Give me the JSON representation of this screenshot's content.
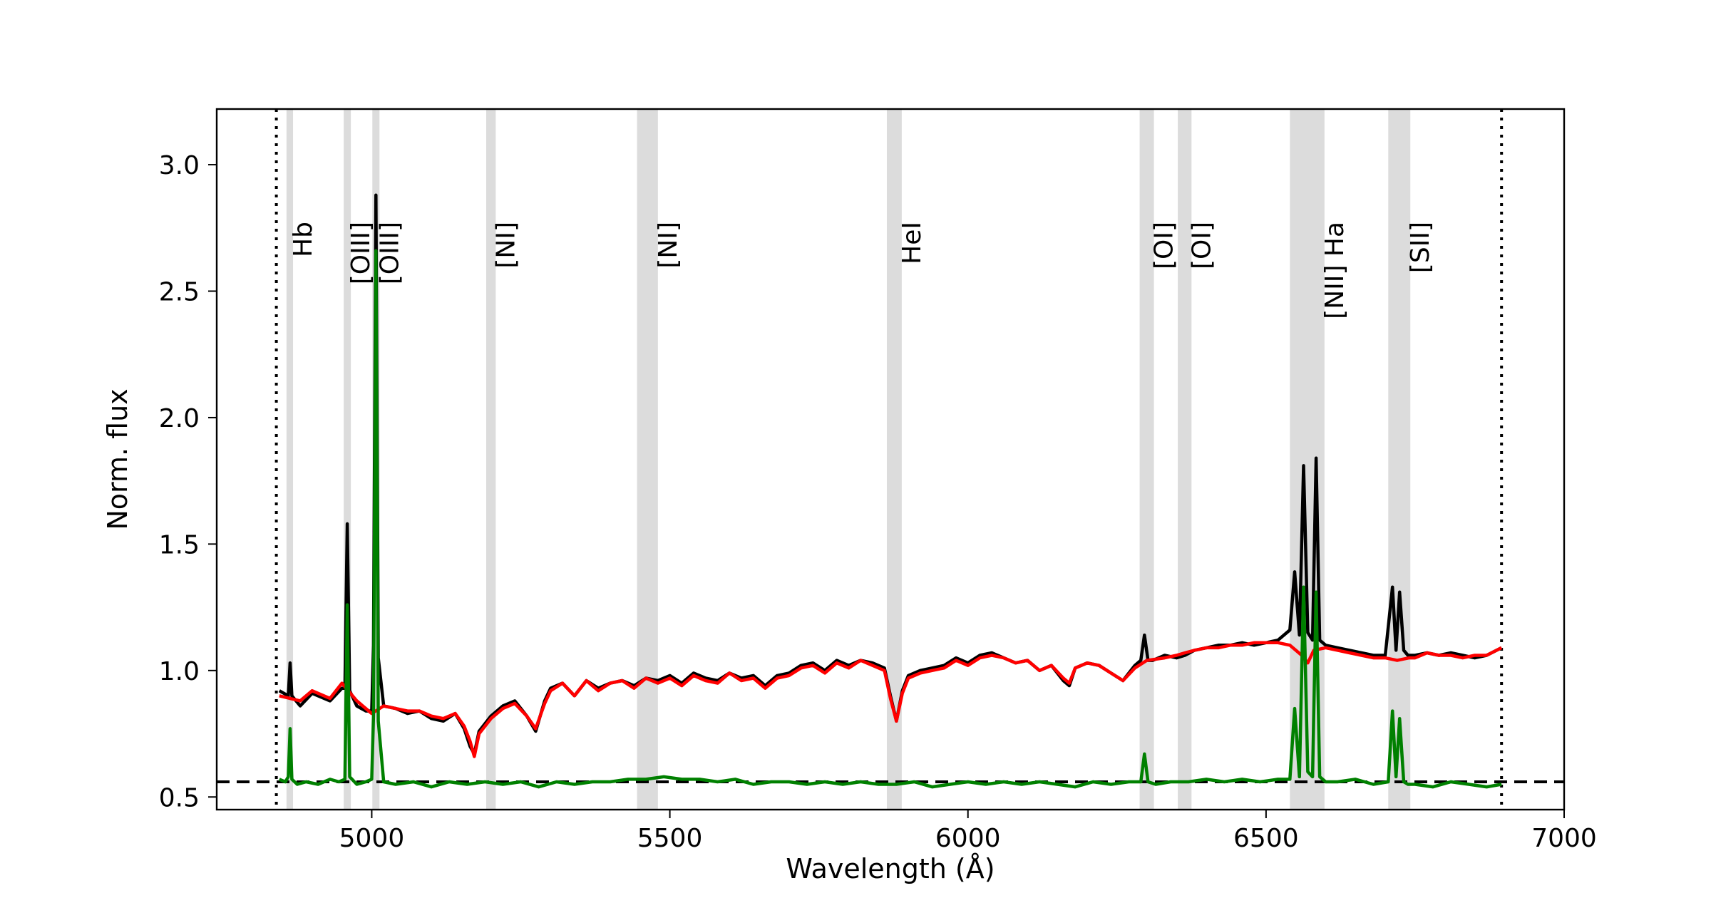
{
  "chart_data": {
    "type": "line",
    "xlabel": "Wavelength (Å)",
    "ylabel": "Norm. flux",
    "xlim": [
      4740,
      7000
    ],
    "ylim": [
      0.45,
      3.22
    ],
    "x_ticks": [
      5000,
      5500,
      6000,
      6500,
      7000
    ],
    "x_tick_labels": [
      "5000",
      "5500",
      "6000",
      "6500",
      "7000"
    ],
    "y_ticks": [
      0.5,
      1.0,
      1.5,
      2.0,
      2.5,
      3.0
    ],
    "y_tick_labels": [
      "0.5",
      "1.0",
      "1.5",
      "2.0",
      "2.5",
      "3.0"
    ],
    "grid": false,
    "wavelength_range_markers": [
      4840,
      6895
    ],
    "residual_baseline": 0.56,
    "emission_lines": [
      {
        "label": "Hb",
        "band": [
          4857,
          4868
        ]
      },
      {
        "label": "[OIII]",
        "band": [
          4953,
          4965
        ]
      },
      {
        "label": "[OIII]",
        "band": [
          5001,
          5013
        ]
      },
      {
        "label": "[NI]",
        "band": [
          5192,
          5208
        ]
      },
      {
        "label": "[NI]",
        "band": [
          5445,
          5480
        ]
      },
      {
        "label": "HeI",
        "band": [
          5864,
          5889
        ]
      },
      {
        "label": "[OI]",
        "band": [
          6288,
          6312
        ]
      },
      {
        "label": "[OI]",
        "band": [
          6352,
          6375
        ]
      },
      {
        "label": "[NII] Ha",
        "band": [
          6540,
          6598
        ]
      },
      {
        "label": "[SII]",
        "band": [
          6705,
          6742
        ]
      }
    ],
    "series": [
      {
        "color": "#000000",
        "x": [
          4845,
          4860,
          4863,
          4866,
          4880,
          4900,
          4930,
          4950,
          4955,
          4959,
          4963,
          4975,
          4990,
          5000,
          5003,
          5007,
          5011,
          5020,
          5040,
          5060,
          5080,
          5100,
          5120,
          5140,
          5155,
          5165,
          5172,
          5180,
          5200,
          5220,
          5240,
          5260,
          5275,
          5290,
          5300,
          5320,
          5340,
          5360,
          5380,
          5400,
          5420,
          5440,
          5460,
          5480,
          5500,
          5520,
          5540,
          5560,
          5580,
          5600,
          5620,
          5640,
          5660,
          5680,
          5700,
          5720,
          5740,
          5760,
          5780,
          5800,
          5820,
          5840,
          5860,
          5870,
          5880,
          5890,
          5900,
          5920,
          5940,
          5960,
          5980,
          6000,
          6020,
          6040,
          6060,
          6080,
          6100,
          6120,
          6140,
          6160,
          6170,
          6180,
          6200,
          6220,
          6240,
          6260,
          6280,
          6290,
          6296,
          6302,
          6310,
          6330,
          6350,
          6364,
          6380,
          6400,
          6420,
          6440,
          6460,
          6480,
          6500,
          6520,
          6540,
          6548,
          6556,
          6563,
          6570,
          6578,
          6584,
          6590,
          6600,
          6620,
          6640,
          6660,
          6680,
          6700,
          6712,
          6718,
          6724,
          6731,
          6738,
          6750,
          6770,
          6790,
          6810,
          6830,
          6850,
          6870,
          6895
        ],
        "y": [
          0.92,
          0.9,
          1.03,
          0.9,
          0.86,
          0.91,
          0.88,
          0.93,
          0.93,
          1.58,
          0.92,
          0.86,
          0.84,
          0.84,
          1.1,
          2.88,
          1.05,
          0.86,
          0.85,
          0.83,
          0.84,
          0.81,
          0.8,
          0.83,
          0.77,
          0.7,
          0.67,
          0.76,
          0.82,
          0.86,
          0.88,
          0.82,
          0.76,
          0.88,
          0.93,
          0.95,
          0.9,
          0.96,
          0.93,
          0.95,
          0.96,
          0.94,
          0.97,
          0.96,
          0.98,
          0.95,
          0.99,
          0.97,
          0.96,
          0.99,
          0.97,
          0.98,
          0.94,
          0.98,
          0.99,
          1.02,
          1.03,
          1.0,
          1.04,
          1.02,
          1.04,
          1.03,
          1.01,
          0.9,
          0.8,
          0.92,
          0.98,
          1.0,
          1.01,
          1.02,
          1.05,
          1.03,
          1.06,
          1.07,
          1.05,
          1.03,
          1.04,
          1.0,
          1.02,
          0.96,
          0.94,
          1.01,
          1.03,
          1.02,
          0.99,
          0.96,
          1.02,
          1.04,
          1.14,
          1.04,
          1.04,
          1.06,
          1.05,
          1.06,
          1.08,
          1.09,
          1.1,
          1.1,
          1.11,
          1.1,
          1.11,
          1.12,
          1.16,
          1.39,
          1.14,
          1.81,
          1.15,
          1.12,
          1.84,
          1.12,
          1.1,
          1.09,
          1.08,
          1.07,
          1.06,
          1.06,
          1.33,
          1.08,
          1.31,
          1.08,
          1.06,
          1.06,
          1.07,
          1.06,
          1.07,
          1.06,
          1.05,
          1.06,
          1.09
        ]
      },
      {
        "color": "#ff0000",
        "x": [
          4845,
          4880,
          4900,
          4930,
          4950,
          4975,
          4990,
          5000,
          5020,
          5040,
          5060,
          5080,
          5100,
          5120,
          5140,
          5155,
          5165,
          5172,
          5180,
          5200,
          5220,
          5240,
          5260,
          5275,
          5290,
          5300,
          5320,
          5340,
          5360,
          5380,
          5400,
          5420,
          5440,
          5460,
          5480,
          5500,
          5520,
          5540,
          5560,
          5580,
          5600,
          5620,
          5640,
          5660,
          5680,
          5700,
          5720,
          5740,
          5760,
          5780,
          5800,
          5820,
          5840,
          5860,
          5870,
          5880,
          5890,
          5900,
          5920,
          5940,
          5960,
          5980,
          6000,
          6020,
          6040,
          6060,
          6080,
          6100,
          6120,
          6140,
          6160,
          6170,
          6180,
          6200,
          6220,
          6240,
          6260,
          6280,
          6300,
          6330,
          6350,
          6364,
          6380,
          6400,
          6420,
          6440,
          6460,
          6480,
          6500,
          6520,
          6540,
          6560,
          6570,
          6580,
          6600,
          6620,
          6640,
          6660,
          6680,
          6700,
          6720,
          6740,
          6750,
          6770,
          6790,
          6810,
          6830,
          6850,
          6870,
          6895
        ],
        "y": [
          0.9,
          0.88,
          0.92,
          0.89,
          0.95,
          0.88,
          0.85,
          0.83,
          0.86,
          0.85,
          0.84,
          0.84,
          0.82,
          0.81,
          0.83,
          0.78,
          0.72,
          0.66,
          0.75,
          0.81,
          0.85,
          0.87,
          0.82,
          0.77,
          0.87,
          0.92,
          0.95,
          0.9,
          0.96,
          0.92,
          0.95,
          0.96,
          0.93,
          0.97,
          0.95,
          0.97,
          0.94,
          0.98,
          0.96,
          0.95,
          0.99,
          0.96,
          0.97,
          0.93,
          0.97,
          0.98,
          1.01,
          1.02,
          0.99,
          1.03,
          1.01,
          1.04,
          1.02,
          1.0,
          0.89,
          0.8,
          0.91,
          0.97,
          0.99,
          1.0,
          1.01,
          1.04,
          1.02,
          1.05,
          1.06,
          1.05,
          1.03,
          1.04,
          1.0,
          1.02,
          0.97,
          0.95,
          1.01,
          1.03,
          1.02,
          0.99,
          0.96,
          1.01,
          1.04,
          1.05,
          1.06,
          1.07,
          1.08,
          1.09,
          1.09,
          1.1,
          1.1,
          1.11,
          1.11,
          1.11,
          1.1,
          1.06,
          1.03,
          1.08,
          1.09,
          1.08,
          1.07,
          1.06,
          1.05,
          1.05,
          1.04,
          1.05,
          1.05,
          1.07,
          1.06,
          1.06,
          1.05,
          1.06,
          1.06,
          1.09
        ]
      },
      {
        "color": "#008000",
        "x": [
          4845,
          4855,
          4860,
          4863,
          4866,
          4875,
          4890,
          4910,
          4930,
          4945,
          4955,
          4959,
          4963,
          4975,
          4990,
          5000,
          5003,
          5007,
          5011,
          5020,
          5040,
          5070,
          5100,
          5130,
          5160,
          5190,
          5220,
          5250,
          5280,
          5310,
          5340,
          5370,
          5400,
          5430,
          5460,
          5490,
          5520,
          5550,
          5580,
          5610,
          5640,
          5670,
          5700,
          5730,
          5760,
          5790,
          5820,
          5850,
          5880,
          5910,
          5940,
          5970,
          6000,
          6030,
          6060,
          6090,
          6120,
          6150,
          6180,
          6210,
          6240,
          6270,
          6290,
          6296,
          6302,
          6315,
          6340,
          6370,
          6400,
          6430,
          6460,
          6490,
          6520,
          6540,
          6548,
          6556,
          6563,
          6570,
          6578,
          6584,
          6590,
          6600,
          6620,
          6650,
          6680,
          6705,
          6712,
          6718,
          6724,
          6731,
          6738,
          6750,
          6780,
          6810,
          6840,
          6870,
          6895
        ],
        "y": [
          0.57,
          0.56,
          0.58,
          0.77,
          0.57,
          0.55,
          0.56,
          0.55,
          0.57,
          0.56,
          0.57,
          1.26,
          0.58,
          0.55,
          0.56,
          0.57,
          0.82,
          2.66,
          0.8,
          0.56,
          0.55,
          0.56,
          0.54,
          0.56,
          0.55,
          0.56,
          0.55,
          0.56,
          0.54,
          0.56,
          0.55,
          0.56,
          0.56,
          0.57,
          0.57,
          0.58,
          0.57,
          0.57,
          0.56,
          0.57,
          0.55,
          0.56,
          0.56,
          0.55,
          0.56,
          0.55,
          0.56,
          0.55,
          0.55,
          0.56,
          0.54,
          0.55,
          0.56,
          0.55,
          0.56,
          0.55,
          0.56,
          0.55,
          0.54,
          0.56,
          0.55,
          0.56,
          0.56,
          0.67,
          0.56,
          0.55,
          0.56,
          0.56,
          0.57,
          0.56,
          0.57,
          0.56,
          0.57,
          0.57,
          0.85,
          0.58,
          1.33,
          0.6,
          0.58,
          1.31,
          0.58,
          0.56,
          0.56,
          0.57,
          0.55,
          0.56,
          0.84,
          0.58,
          0.81,
          0.56,
          0.55,
          0.55,
          0.54,
          0.56,
          0.55,
          0.54,
          0.55
        ]
      }
    ]
  }
}
